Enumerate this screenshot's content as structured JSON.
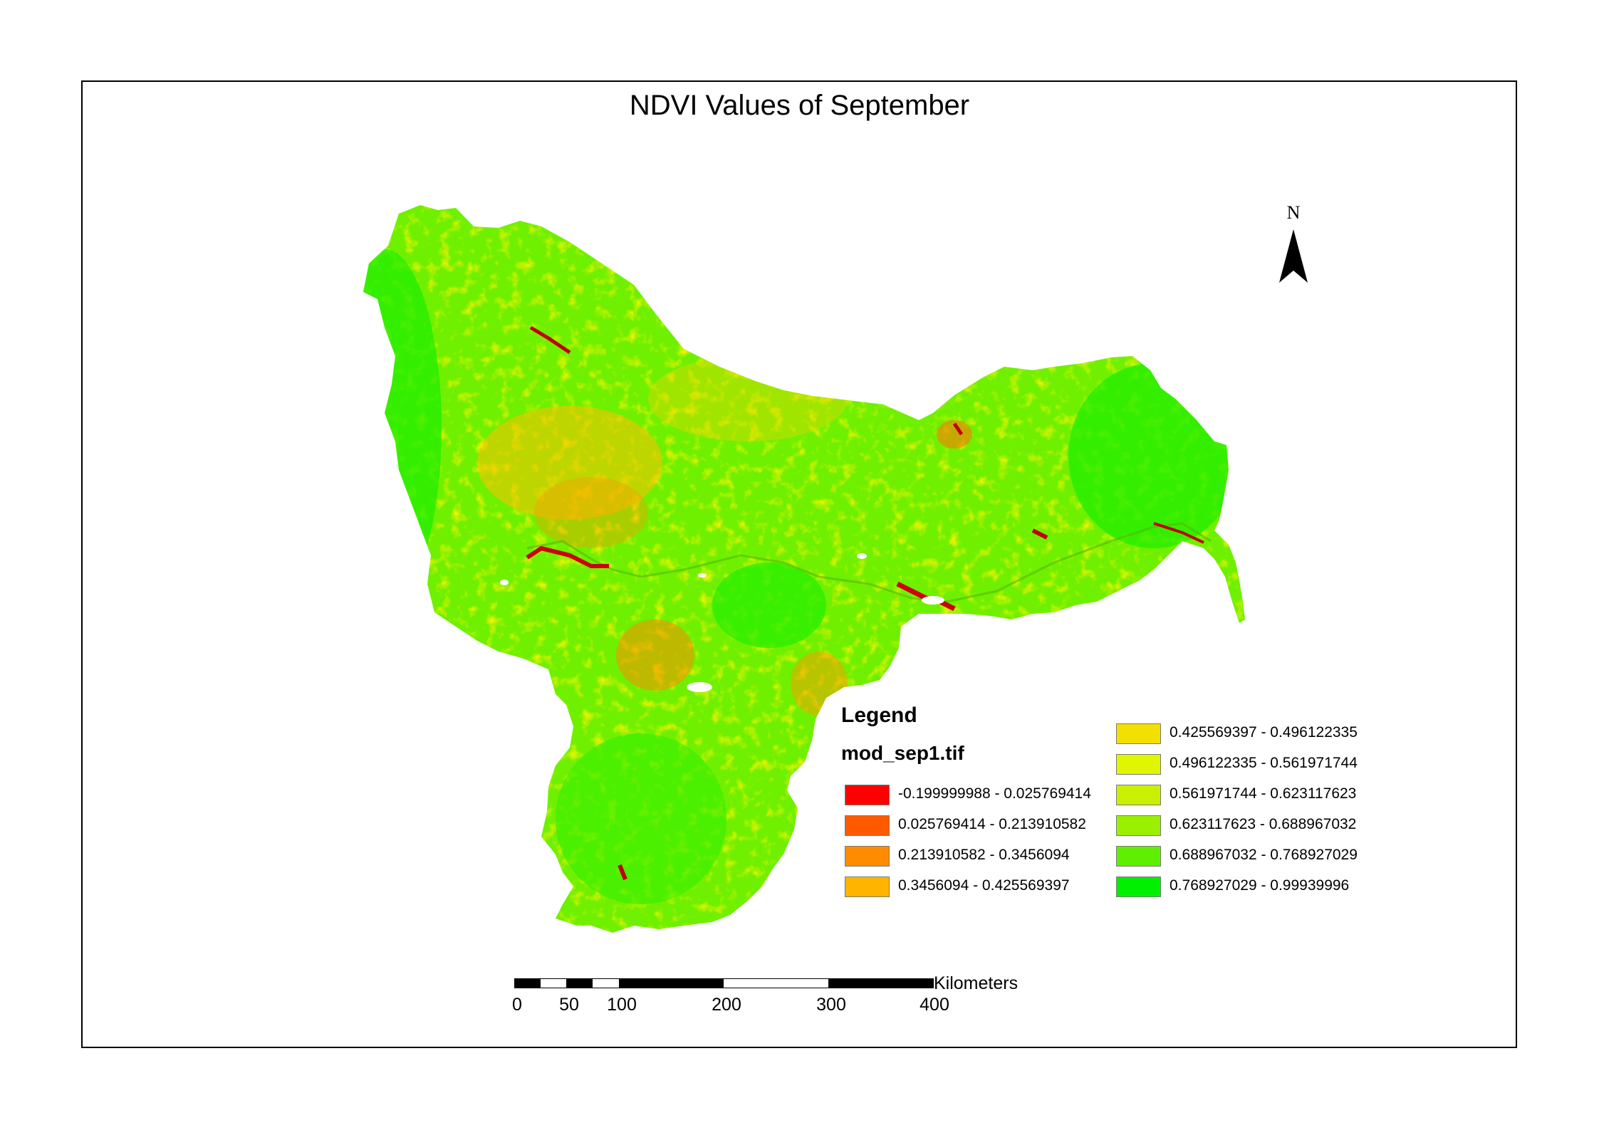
{
  "title": "NDVI Values of September",
  "north_arrow": {
    "label": "N",
    "icon": "north-arrow-icon"
  },
  "legend": {
    "title": "Legend",
    "layer": "mod_sep1.tif",
    "classes": [
      {
        "label": "-0.199999988 - 0.025769414",
        "color": "#ff0000"
      },
      {
        "label": "0.025769414 - 0.213910582",
        "color": "#ff5a00"
      },
      {
        "label": "0.213910582 - 0.3456094",
        "color": "#ff8c00"
      },
      {
        "label": "0.3456094 - 0.425569397",
        "color": "#ffb400"
      },
      {
        "label": "0.425569397 - 0.496122335",
        "color": "#f2e000"
      },
      {
        "label": "0.496122335 - 0.561971744",
        "color": "#e0f500"
      },
      {
        "label": "0.561971744 - 0.623117623",
        "color": "#c8f000"
      },
      {
        "label": "0.623117623 - 0.688967032",
        "color": "#9bef00"
      },
      {
        "label": "0.688967032 - 0.768927029",
        "color": "#5ef000"
      },
      {
        "label": "0.768927029 - 0.99939996",
        "color": "#00f000"
      }
    ]
  },
  "scale_bar": {
    "unit": "Kilometers",
    "ticks": [
      "0",
      "50",
      "100",
      "200",
      "300",
      "400"
    ]
  }
}
